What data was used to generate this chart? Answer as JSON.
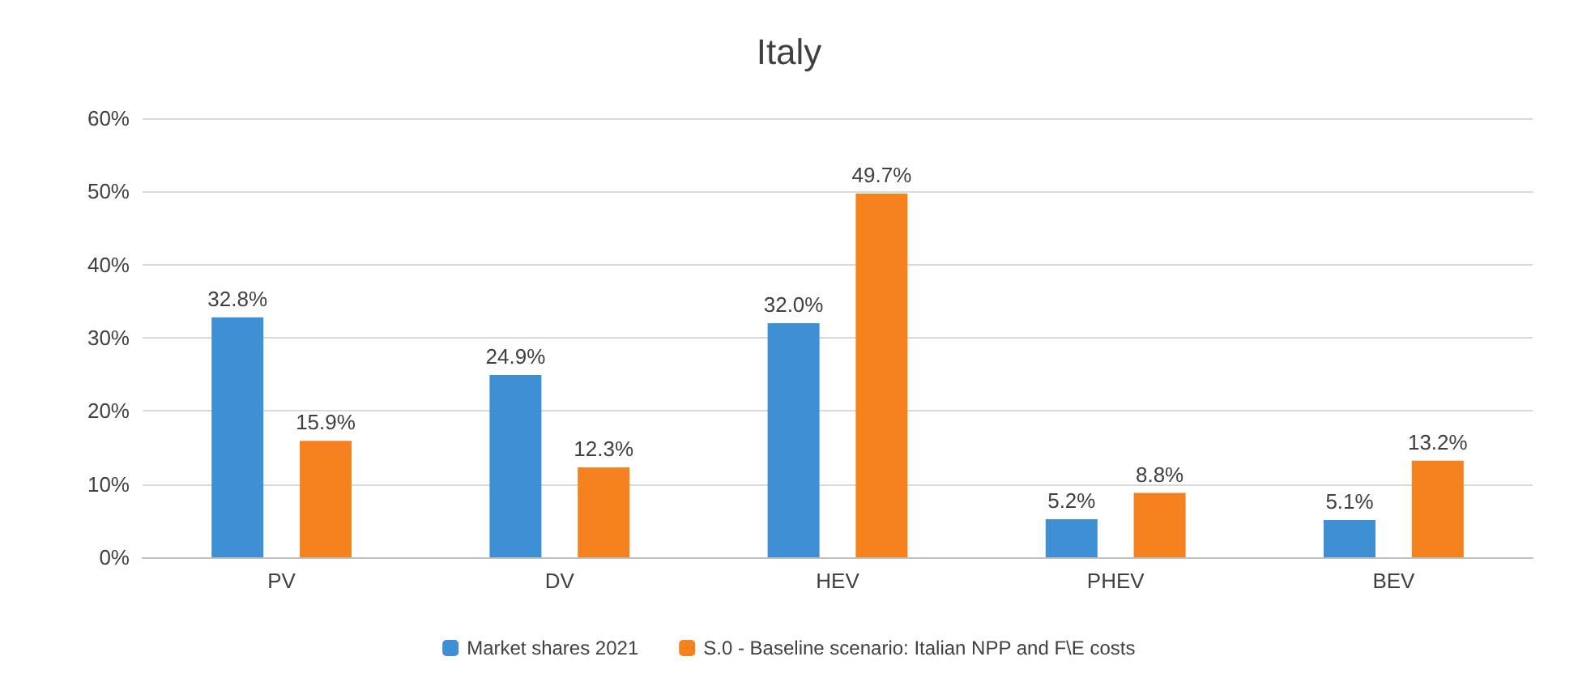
{
  "chart_data": {
    "type": "bar",
    "title": "Italy",
    "categories": [
      "PV",
      "DV",
      "HEV",
      "PHEV",
      "BEV"
    ],
    "series": [
      {
        "name": "Market shares 2021",
        "color": "#3f8fd4",
        "values": [
          32.8,
          24.9,
          32.0,
          5.2,
          5.1
        ],
        "value_labels": [
          "32.8%",
          "24.9%",
          "32.0%",
          "5.2%",
          "5.1%"
        ]
      },
      {
        "name": "S.0 - Baseline scenario: Italian NPP and F\\E costs",
        "color": "#f5811f",
        "values": [
          15.9,
          12.3,
          49.7,
          8.8,
          13.2
        ],
        "value_labels": [
          "15.9%",
          "12.3%",
          "49.7%",
          "8.8%",
          "13.2%"
        ]
      }
    ],
    "ylim": [
      0,
      60
    ],
    "yticks": [
      {
        "value": 0,
        "label": "0%"
      },
      {
        "value": 10,
        "label": "10%"
      },
      {
        "value": 20,
        "label": "20%"
      },
      {
        "value": 30,
        "label": "30%"
      },
      {
        "value": 40,
        "label": "40%"
      },
      {
        "value": 50,
        "label": "50%"
      },
      {
        "value": 60,
        "label": "60%"
      }
    ],
    "grid": "y",
    "legend": "bottom"
  }
}
